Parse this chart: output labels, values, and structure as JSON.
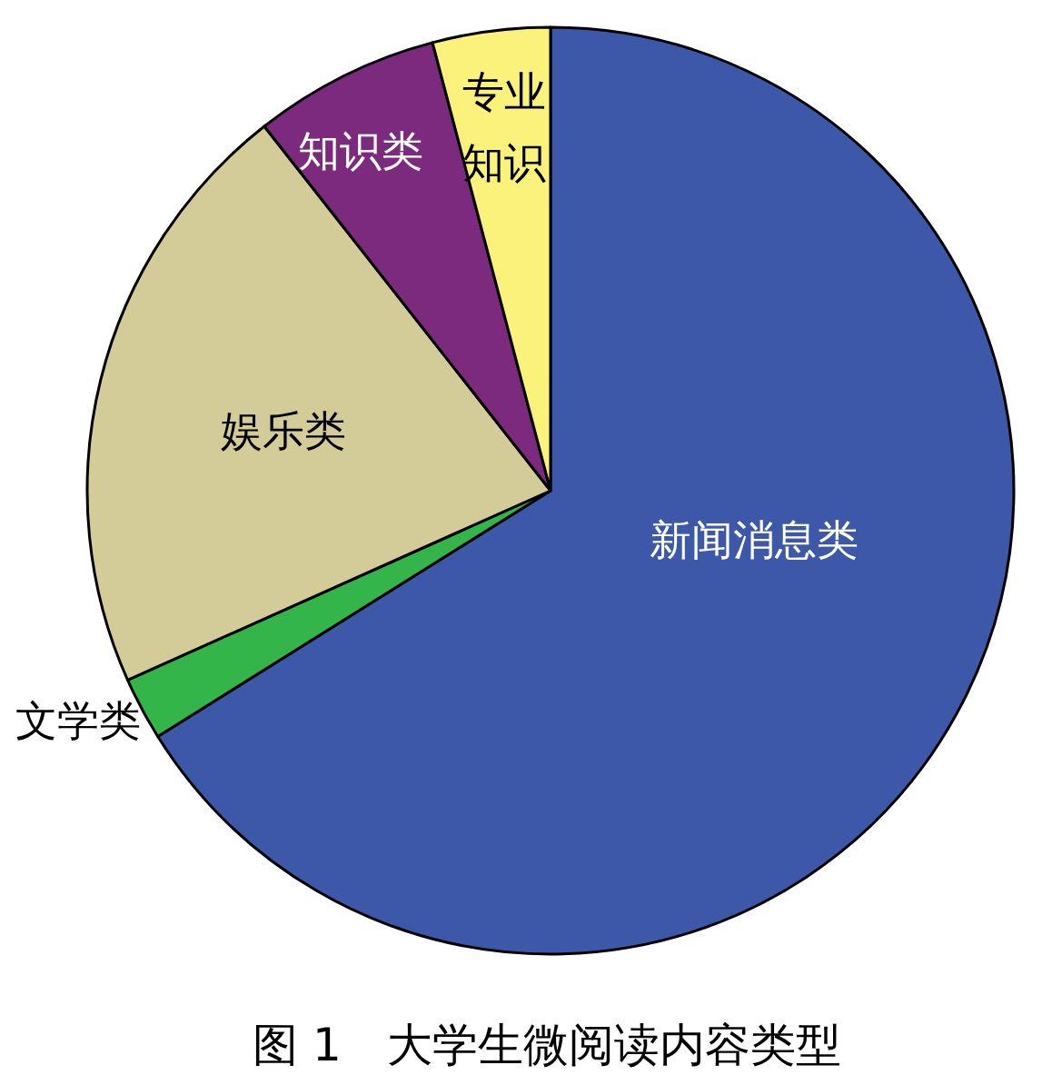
{
  "chart_data": {
    "type": "pie",
    "title": "图 1　大学生微阅读内容类型",
    "categories": [
      "新闻消息类",
      "文学类",
      "娱乐类",
      "知识类",
      "专业知识"
    ],
    "values": [
      66.1,
      2.2,
      21.1,
      6.5,
      4.1
    ],
    "colors": [
      "#3d58a8",
      "#33b54a",
      "#d4cc98",
      "#7b2a7e",
      "#fbf27c"
    ]
  }
}
